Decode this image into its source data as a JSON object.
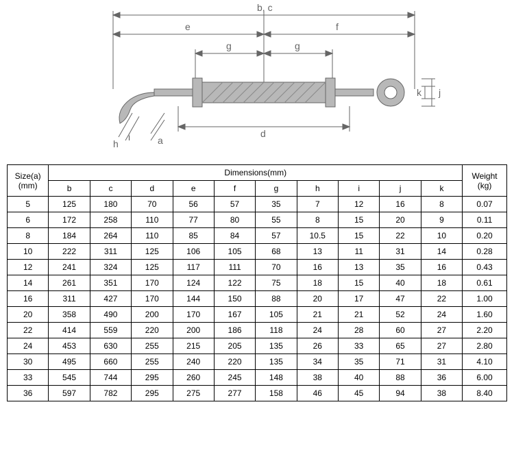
{
  "diagram": {
    "labels": {
      "bc": "b, c",
      "e": "e",
      "f": "f",
      "g1": "g",
      "g2": "g",
      "d": "d",
      "a": "a",
      "h": "h",
      "i": "i",
      "j": "j",
      "k": "k"
    },
    "stroke": "#666666",
    "fill": "#b8b8b8",
    "text_color": "#666666",
    "font_size": 14
  },
  "table": {
    "headers": {
      "size": "Size(a) (mm)",
      "dimensions": "Dimensions(mm)",
      "weight": "Weight (kg)",
      "cols": [
        "b",
        "c",
        "d",
        "e",
        "f",
        "g",
        "h",
        "i",
        "j",
        "k"
      ]
    },
    "rows": [
      {
        "a": "5",
        "b": "125",
        "c": "180",
        "d": "70",
        "e": "56",
        "f": "57",
        "g": "35",
        "h": "7",
        "i": "12",
        "j": "16",
        "k": "8",
        "w": "0.07"
      },
      {
        "a": "6",
        "b": "172",
        "c": "258",
        "d": "110",
        "e": "77",
        "f": "80",
        "g": "55",
        "h": "8",
        "i": "15",
        "j": "20",
        "k": "9",
        "w": "0.11"
      },
      {
        "a": "8",
        "b": "184",
        "c": "264",
        "d": "110",
        "e": "85",
        "f": "84",
        "g": "57",
        "h": "10.5",
        "i": "15",
        "j": "22",
        "k": "10",
        "w": "0.20"
      },
      {
        "a": "10",
        "b": "222",
        "c": "311",
        "d": "125",
        "e": "106",
        "f": "105",
        "g": "68",
        "h": "13",
        "i": "11",
        "j": "31",
        "k": "14",
        "w": "0.28"
      },
      {
        "a": "12",
        "b": "241",
        "c": "324",
        "d": "125",
        "e": "117",
        "f": "111",
        "g": "70",
        "h": "16",
        "i": "13",
        "j": "35",
        "k": "16",
        "w": "0.43"
      },
      {
        "a": "14",
        "b": "261",
        "c": "351",
        "d": "170",
        "e": "124",
        "f": "122",
        "g": "75",
        "h": "18",
        "i": "15",
        "j": "40",
        "k": "18",
        "w": "0.61"
      },
      {
        "a": "16",
        "b": "311",
        "c": "427",
        "d": "170",
        "e": "144",
        "f": "150",
        "g": "88",
        "h": "20",
        "i": "17",
        "j": "47",
        "k": "22",
        "w": "1.00"
      },
      {
        "a": "20",
        "b": "358",
        "c": "490",
        "d": "200",
        "e": "170",
        "f": "167",
        "g": "105",
        "h": "21",
        "i": "21",
        "j": "52",
        "k": "24",
        "w": "1.60"
      },
      {
        "a": "22",
        "b": "414",
        "c": "559",
        "d": "220",
        "e": "200",
        "f": "186",
        "g": "118",
        "h": "24",
        "i": "28",
        "j": "60",
        "k": "27",
        "w": "2.20"
      },
      {
        "a": "24",
        "b": "453",
        "c": "630",
        "d": "255",
        "e": "215",
        "f": "205",
        "g": "135",
        "h": "26",
        "i": "33",
        "j": "65",
        "k": "27",
        "w": "2.80"
      },
      {
        "a": "30",
        "b": "495",
        "c": "660",
        "d": "255",
        "e": "240",
        "f": "220",
        "g": "135",
        "h": "34",
        "i": "35",
        "j": "71",
        "k": "31",
        "w": "4.10"
      },
      {
        "a": "33",
        "b": "545",
        "c": "744",
        "d": "295",
        "e": "260",
        "f": "245",
        "g": "148",
        "h": "38",
        "i": "40",
        "j": "88",
        "k": "36",
        "w": "6.00"
      },
      {
        "a": "36",
        "b": "597",
        "c": "782",
        "d": "295",
        "e": "275",
        "f": "277",
        "g": "158",
        "h": "46",
        "i": "45",
        "j": "94",
        "k": "38",
        "w": "8.40"
      }
    ]
  }
}
